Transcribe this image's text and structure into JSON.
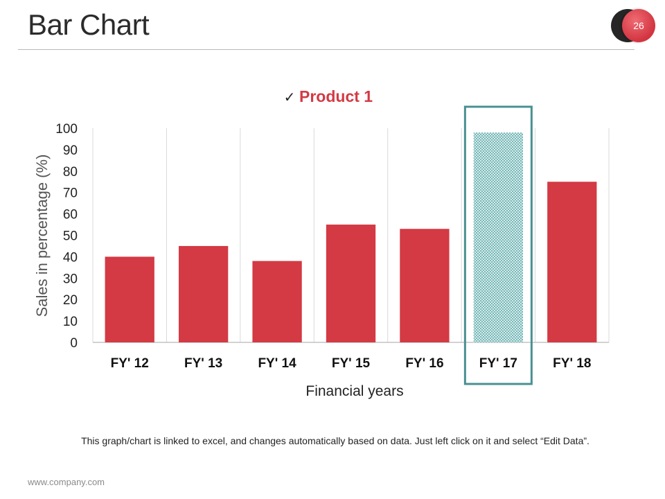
{
  "slide": {
    "title": "Bar Chart",
    "page_number": "26",
    "footer_note": "This graph/chart is linked to excel, and changes automatically  based on data. Just left click on it and select “Edit Data”.",
    "footer_url": "www.company.com"
  },
  "colors": {
    "bar": "#d33a44",
    "highlight_box": "#4a9090",
    "highlight_pattern": "#6bb2b2",
    "grid": "#d9d9d9"
  },
  "chart_data": {
    "type": "bar",
    "categories": [
      "FY' 12",
      "FY' 13",
      "FY' 14",
      "FY' 15",
      "FY' 16",
      "FY' 17",
      "FY' 18"
    ],
    "series": [
      {
        "name": "Product 1",
        "values": [
          40,
          45,
          38,
          55,
          53,
          98,
          75
        ]
      }
    ],
    "legend": {
      "label": "Product 1",
      "position": "top",
      "marker": "✓"
    },
    "xlabel": "Financial years",
    "ylabel": "Sales in percentage (%)",
    "ylim": [
      0,
      100
    ],
    "yticks": [
      "0",
      "10",
      "20",
      "30",
      "40",
      "50",
      "60",
      "70",
      "80",
      "90",
      "100"
    ],
    "highlighted_category": "FY' 17",
    "grid": "vertical"
  }
}
